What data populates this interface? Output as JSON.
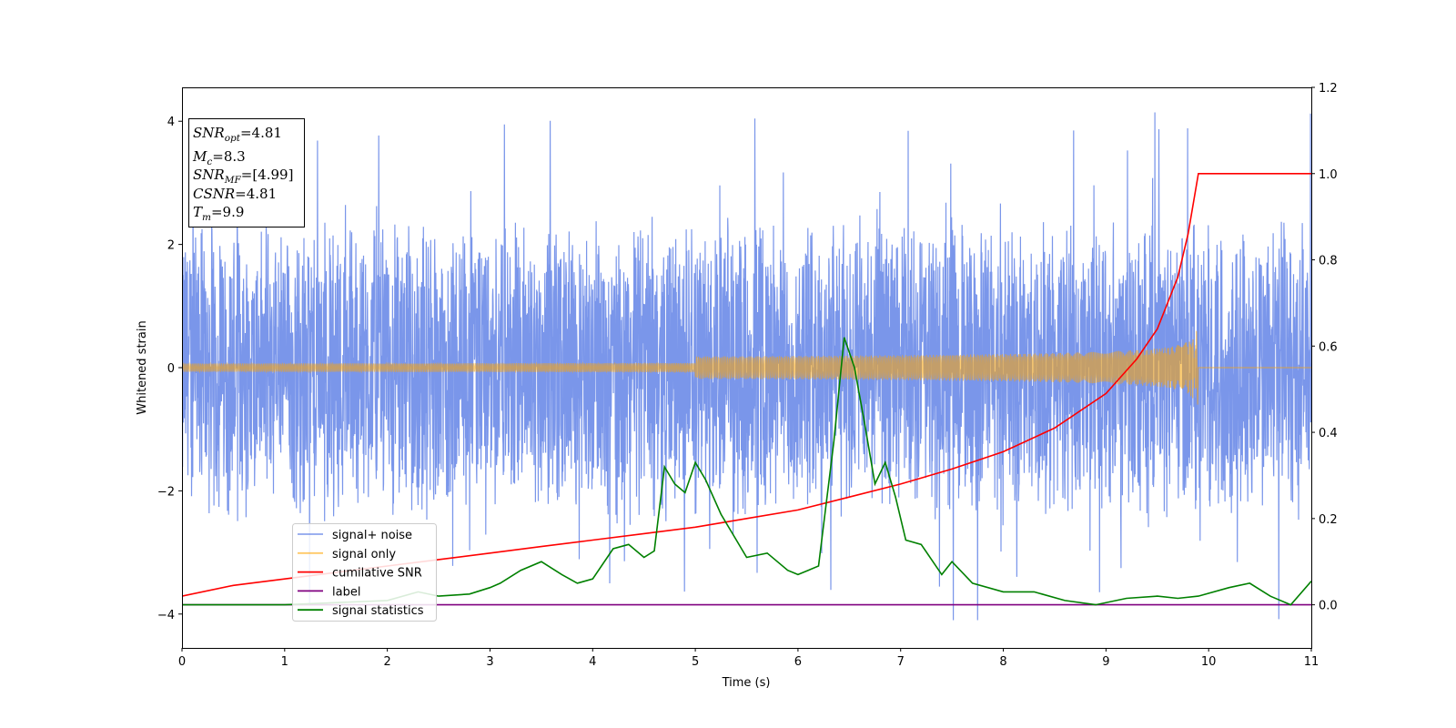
{
  "chart_data": {
    "type": "line",
    "xlabel": "Time (s)",
    "ylabel": "Whitened strain",
    "xlim": [
      0,
      11
    ],
    "ylim": [
      -4.55,
      4.55
    ],
    "y2lim": [
      -0.1,
      1.2
    ],
    "x_ticks": [
      0,
      1,
      2,
      3,
      4,
      5,
      6,
      7,
      8,
      9,
      10,
      11
    ],
    "y_ticks": [
      -4,
      -2,
      0,
      2,
      4
    ],
    "y2_ticks": [
      "0.0",
      "0.2",
      "0.4",
      "0.6",
      "0.8",
      "1.0",
      "1.2"
    ],
    "legend_placement": "lower-left",
    "annotation": [
      {
        "sym": "SNR",
        "sub": "opt",
        "value": "=4.81"
      },
      {
        "sym": "M",
        "sub": "c",
        "value": "=8.3"
      },
      {
        "sym": "SNR",
        "sub": "MF",
        "value": "=[4.99]"
      },
      {
        "sym": "CSNR",
        "sub": "",
        "value": "=4.81"
      },
      {
        "sym": "T",
        "sub": "m",
        "value": "=9.9"
      }
    ],
    "series": [
      {
        "name": "signal+ noise",
        "color": "#4169e1",
        "axis": "left",
        "kind": "noise",
        "typical_range": [
          -2.6,
          2.6
        ],
        "extreme_range": [
          -4.1,
          4.15
        ]
      },
      {
        "name": "signal only",
        "color": "#ffa500",
        "axis": "left",
        "kind": "chirp",
        "merger_time": 9.9,
        "peak_amplitude": 0.6
      },
      {
        "name": "cumilative SNR",
        "color": "#ff0000",
        "axis": "right",
        "x": [
          0,
          0.5,
          1,
          1.5,
          2,
          2.5,
          3,
          3.5,
          4,
          4.5,
          5,
          5.5,
          6,
          6.5,
          7,
          7.5,
          8,
          8.5,
          9,
          9.3,
          9.5,
          9.7,
          9.8,
          9.9,
          10,
          11
        ],
        "values": [
          0.02,
          0.045,
          0.06,
          0.075,
          0.09,
          0.105,
          0.12,
          0.135,
          0.15,
          0.165,
          0.18,
          0.2,
          0.22,
          0.25,
          0.28,
          0.315,
          0.355,
          0.41,
          0.49,
          0.57,
          0.64,
          0.76,
          0.86,
          1.0,
          1.0,
          1.0
        ]
      },
      {
        "name": "label",
        "color": "#800080",
        "axis": "right",
        "x": [
          0,
          11
        ],
        "values": [
          0,
          0
        ]
      },
      {
        "name": "signal statistics",
        "color": "#008000",
        "axis": "right",
        "x": [
          0,
          1,
          2,
          2.3,
          2.5,
          2.8,
          3,
          3.1,
          3.3,
          3.5,
          3.7,
          3.85,
          4,
          4.2,
          4.35,
          4.5,
          4.6,
          4.7,
          4.8,
          4.9,
          5.0,
          5.1,
          5.25,
          5.4,
          5.5,
          5.7,
          5.9,
          6.0,
          6.2,
          6.35,
          6.45,
          6.55,
          6.65,
          6.75,
          6.85,
          6.95,
          7.05,
          7.2,
          7.4,
          7.5,
          7.7,
          8.0,
          8.3,
          8.6,
          8.9,
          9.2,
          9.5,
          9.7,
          9.9,
          10.2,
          10.4,
          10.6,
          10.8,
          11
        ],
        "values": [
          0.0,
          0.0,
          0.01,
          0.03,
          0.02,
          0.025,
          0.04,
          0.05,
          0.08,
          0.1,
          0.07,
          0.05,
          0.06,
          0.13,
          0.14,
          0.11,
          0.125,
          0.32,
          0.28,
          0.26,
          0.33,
          0.29,
          0.21,
          0.15,
          0.11,
          0.12,
          0.08,
          0.07,
          0.09,
          0.38,
          0.62,
          0.55,
          0.42,
          0.28,
          0.33,
          0.25,
          0.15,
          0.14,
          0.07,
          0.1,
          0.05,
          0.03,
          0.03,
          0.01,
          0.0,
          0.015,
          0.02,
          0.015,
          0.02,
          0.04,
          0.05,
          0.02,
          0.0,
          0.055
        ]
      }
    ]
  }
}
